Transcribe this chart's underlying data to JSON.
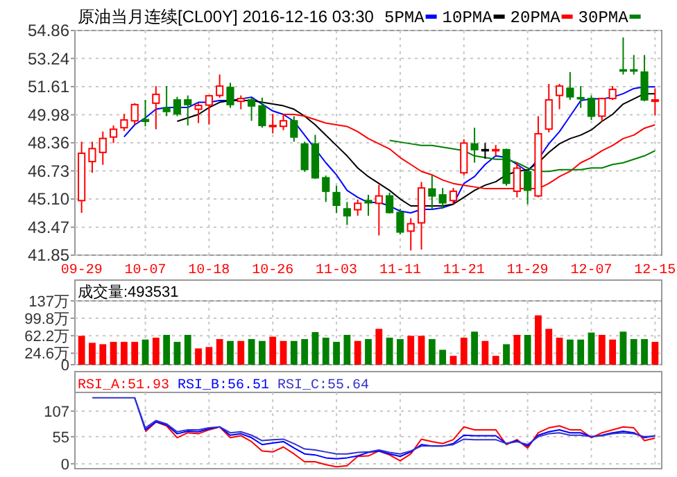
{
  "chart_data": [
    {
      "type": "candlestick",
      "title": "原油当月连续[CL00Y] 2016-12-16 03:30",
      "categories": [
        "09-29",
        null,
        null,
        null,
        null,
        null,
        "10-07",
        null,
        null,
        null,
        null,
        null,
        "10-18",
        null,
        null,
        null,
        null,
        null,
        "10-26",
        null,
        null,
        null,
        null,
        null,
        "11-03",
        null,
        null,
        null,
        null,
        null,
        "11-11",
        null,
        null,
        null,
        null,
        null,
        "11-21",
        null,
        null,
        null,
        null,
        null,
        "11-29",
        null,
        null,
        null,
        null,
        null,
        "12-07",
        null,
        null,
        null,
        null,
        null,
        "12-15"
      ],
      "ohlc": [
        [
          45.01,
          48.42,
          44.3,
          47.75
        ],
        [
          47.27,
          48.42,
          46.62,
          48.02
        ],
        [
          47.8,
          49.01,
          47.08,
          48.61
        ],
        [
          48.69,
          49.36,
          48.34,
          49.14
        ],
        [
          49.23,
          50.03,
          49.04,
          49.68
        ],
        [
          49.63,
          50.65,
          49.41,
          50.57
        ],
        [
          49.7,
          50.84,
          49.31,
          49.6
        ],
        [
          50.65,
          51.64,
          49.14,
          51.16
        ],
        [
          50.38,
          51.64,
          49.9,
          50.17
        ],
        [
          50.84,
          51.02,
          49.9,
          50.03
        ],
        [
          50.84,
          51.1,
          49.36,
          50.57
        ],
        [
          50.3,
          50.65,
          49.5,
          50.52
        ],
        [
          50.54,
          51.1,
          49.41,
          51.08
        ],
        [
          51.1,
          52.31,
          50.97,
          51.64
        ],
        [
          51.56,
          51.83,
          50.38,
          50.57
        ],
        [
          50.76,
          51.1,
          50.3,
          50.92
        ],
        [
          50.84,
          50.97,
          49.63,
          50.49
        ],
        [
          50.49,
          50.97,
          49.23,
          49.36
        ],
        [
          49.31,
          50.03,
          48.9,
          49.36
        ],
        [
          49.31,
          50.03,
          49.09,
          49.63
        ],
        [
          49.63,
          49.9,
          48.42,
          48.69
        ],
        [
          48.29,
          48.42,
          46.68,
          46.81
        ],
        [
          48.29,
          48.82,
          46.27,
          46.33
        ],
        [
          46.33,
          46.46,
          44.93,
          45.55
        ],
        [
          45.47,
          45.87,
          44.3,
          44.74
        ],
        [
          44.53,
          44.93,
          43.6,
          44.13
        ],
        [
          44.48,
          45.07,
          44.13,
          44.85
        ],
        [
          45.01,
          45.34,
          44.13,
          44.88
        ],
        [
          44.85,
          45.92,
          42.99,
          45.28
        ],
        [
          45.28,
          45.47,
          44.26,
          44.32
        ],
        [
          44.32,
          44.53,
          43.05,
          43.19
        ],
        [
          43.24,
          43.99,
          42.12,
          43.67
        ],
        [
          43.72,
          46.09,
          42.17,
          45.74
        ],
        [
          45.68,
          46.46,
          44.48,
          45.28
        ],
        [
          45.34,
          45.74,
          44.53,
          44.88
        ],
        [
          45.01,
          45.74,
          44.8,
          45.55
        ],
        [
          46.62,
          48.56,
          46.46,
          48.34
        ],
        [
          48.29,
          49.23,
          47.21,
          47.96
        ],
        [
          47.96,
          48.34,
          47.43,
          47.96
        ],
        [
          47.9,
          48.23,
          47.61,
          47.96
        ],
        [
          47.96,
          48.02,
          45.87,
          46.01
        ],
        [
          45.55,
          47.21,
          45.2,
          46.89
        ],
        [
          46.68,
          46.81,
          44.8,
          45.61
        ],
        [
          45.28,
          49.9,
          45.2,
          48.88
        ],
        [
          49.15,
          51.77,
          48.96,
          50.84
        ],
        [
          51.1,
          51.77,
          50.3,
          51.64
        ],
        [
          51.51,
          52.45,
          50.84,
          51.02
        ],
        [
          50.97,
          51.64,
          50.38,
          50.92
        ],
        [
          50.92,
          51.1,
          49.68,
          49.9
        ],
        [
          49.9,
          50.97,
          49.57,
          50.92
        ],
        [
          50.92,
          51.64,
          50.84,
          51.45
        ],
        [
          52.58,
          54.46,
          52.31,
          52.53
        ],
        [
          52.58,
          53.44,
          52.31,
          52.53
        ],
        [
          52.45,
          53.44,
          50.76,
          50.84
        ],
        [
          50.76,
          51.5,
          49.95,
          50.84
        ]
      ],
      "colors": [
        "#ff0000",
        "#ff0000",
        "#ff0000",
        "#ff0000",
        "#ff0000",
        "#ff0000",
        "#008000",
        "#ff0000",
        "#008000",
        "#008000",
        "#008000",
        "#ff0000",
        "#ff0000",
        "#ff0000",
        "#008000",
        "#ff0000",
        "#008000",
        "#008000",
        "#ff0000",
        "#ff0000",
        "#008000",
        "#008000",
        "#008000",
        "#008000",
        "#008000",
        "#008000",
        "#ff0000",
        "#008000",
        "#ff0000",
        "#008000",
        "#008000",
        "#ff0000",
        "#ff0000",
        "#008000",
        "#008000",
        "#ff0000",
        "#ff0000",
        "#008000",
        "#000000",
        "#ff0000",
        "#008000",
        "#ff0000",
        "#008000",
        "#ff0000",
        "#ff0000",
        "#ff0000",
        "#008000",
        "#008000",
        "#008000",
        "#ff0000",
        "#ff0000",
        "#008000",
        "#008000",
        "#008000",
        "#ff0000"
      ],
      "series": [
        {
          "name": "5PMA",
          "type": "line",
          "color": "#0000ff",
          "values": [
            null,
            null,
            null,
            null,
            48.7,
            49.4,
            49.8,
            50.3,
            50.4,
            50.4,
            50.4,
            50.7,
            50.7,
            50.8,
            50.8,
            50.9,
            51,
            50.6,
            50.2,
            50,
            49.6,
            48.8,
            48,
            47.2,
            46.5,
            45.6,
            45.2,
            44.9,
            44.9,
            44.7,
            44.4,
            44.3,
            44.5,
            44.5,
            44.6,
            44.8,
            46,
            46.4,
            47.1,
            47.6,
            47.5,
            47.1,
            46.7,
            47.4,
            48.3,
            49,
            49.9,
            50.8,
            50.9,
            50.9,
            51,
            51.2,
            51.5,
            51.6,
            51.6
          ]
        },
        {
          "name": "10PMA",
          "type": "line",
          "color": "#000000",
          "values": [
            null,
            null,
            null,
            null,
            null,
            null,
            null,
            null,
            null,
            49.6,
            49.8,
            50,
            50.4,
            50.7,
            50.8,
            50.8,
            50.8,
            50.7,
            50.6,
            50.5,
            50.3,
            49.9,
            49.4,
            48.8,
            48.2,
            47.6,
            46.9,
            46.4,
            46,
            45.6,
            45.1,
            44.7,
            44.7,
            44.7,
            44.7,
            44.8,
            45.2,
            45.6,
            45.9,
            46.1,
            46.5,
            46.7,
            46.8,
            47.2,
            47.8,
            48.3,
            48.6,
            48.8,
            49.1,
            49.6,
            50,
            50.6,
            50.9,
            51.2,
            51.2
          ]
        },
        {
          "name": "20PMA",
          "type": "line",
          "color": "#ff0000",
          "values": [
            null,
            null,
            null,
            null,
            null,
            null,
            null,
            null,
            null,
            null,
            null,
            null,
            null,
            null,
            null,
            null,
            null,
            null,
            null,
            50,
            50,
            49.9,
            49.7,
            49.5,
            49.4,
            49.3,
            49,
            48.6,
            48.3,
            48,
            47.5,
            47.1,
            46.7,
            46.5,
            46.2,
            46,
            45.9,
            45.8,
            45.7,
            45.7,
            45.7,
            45.7,
            45.7,
            45.7,
            46,
            46.4,
            46.7,
            47.2,
            47.5,
            47.9,
            48.2,
            48.6,
            48.8,
            49.2,
            49.4
          ]
        },
        {
          "name": "30PMA",
          "type": "line",
          "color": "#008000",
          "values": [
            null,
            null,
            null,
            null,
            null,
            null,
            null,
            null,
            null,
            null,
            null,
            null,
            null,
            null,
            null,
            null,
            null,
            null,
            null,
            null,
            null,
            null,
            null,
            null,
            null,
            null,
            null,
            null,
            null,
            48.5,
            48.4,
            48.3,
            48.2,
            48.2,
            48.1,
            48,
            47.9,
            47.6,
            47.5,
            47.4,
            47.4,
            47.2,
            46.9,
            46.7,
            46.7,
            46.8,
            46.8,
            46.8,
            46.9,
            46.9,
            47.1,
            47.2,
            47.4,
            47.6,
            47.9
          ]
        }
      ],
      "ylim": [
        41.85,
        54.86
      ],
      "yticks": [
        41.85,
        43.47,
        {
          "value": 45.1,
          "label": "45.10"
        },
        46.73,
        48.36,
        49.98,
        51.61,
        53.24,
        54.86
      ],
      "grid": true,
      "legend": "top"
    },
    {
      "type": "bar",
      "title": "成交量:493531",
      "categories": [
        null,
        null,
        null,
        null,
        null,
        null,
        null,
        null,
        null,
        null,
        null,
        null,
        null,
        null,
        null,
        null,
        null,
        null,
        null,
        null,
        null,
        null,
        null,
        null,
        null,
        null,
        null,
        null,
        null,
        null,
        null,
        null,
        null,
        null,
        null,
        null,
        null,
        null,
        null,
        null,
        null,
        null,
        null,
        null,
        null,
        null,
        null,
        null,
        null,
        null,
        null,
        null,
        null,
        null,
        null
      ],
      "values": [
        62,
        47,
        44,
        49,
        49,
        49,
        54,
        58,
        64,
        49,
        64,
        35,
        38,
        55,
        51,
        51,
        55,
        51,
        60,
        51,
        51,
        55,
        70,
        58,
        49,
        64,
        51,
        55,
        77,
        58,
        55,
        62,
        62,
        55,
        32,
        19,
        58,
        71,
        51,
        19,
        44,
        64,
        64,
        106,
        77,
        58,
        54,
        54,
        69,
        64,
        54,
        71,
        55,
        55,
        49
      ],
      "colors": [
        "#ff0000",
        "#ff0000",
        "#ff0000",
        "#ff0000",
        "#ff0000",
        "#ff0000",
        "#008000",
        "#ff0000",
        "#008000",
        "#008000",
        "#008000",
        "#ff0000",
        "#ff0000",
        "#ff0000",
        "#008000",
        "#ff0000",
        "#008000",
        "#008000",
        "#ff0000",
        "#ff0000",
        "#008000",
        "#008000",
        "#008000",
        "#008000",
        "#008000",
        "#008000",
        "#ff0000",
        "#008000",
        "#ff0000",
        "#008000",
        "#008000",
        "#ff0000",
        "#ff0000",
        "#008000",
        "#008000",
        "#ff0000",
        "#ff0000",
        "#008000",
        "#ff0000",
        "#ff0000",
        "#008000",
        "#ff0000",
        "#008000",
        "#ff0000",
        "#ff0000",
        "#ff0000",
        "#008000",
        "#008000",
        "#008000",
        "#ff0000",
        "#ff0000",
        "#008000",
        "#008000",
        "#008000",
        "#ff0000"
      ],
      "ylim": [
        0,
        137
      ],
      "yticks": [
        0,
        {
          "value": 24.6,
          "label": "24.6万"
        },
        {
          "value": 62.2,
          "label": "62.2万"
        },
        {
          "value": 99.8,
          "label": "99.8万"
        },
        {
          "value": 137,
          "label": "137万"
        }
      ],
      "grid": true,
      "tick_labels": "y"
    },
    {
      "type": "line",
      "categories": [
        null,
        null,
        null,
        null,
        null,
        null,
        null,
        null,
        null,
        null,
        null,
        null,
        null,
        null,
        null,
        null,
        null,
        null,
        null,
        null,
        null,
        null,
        null,
        null,
        null,
        null,
        null,
        null,
        null,
        null,
        null,
        null,
        null,
        null,
        null,
        null,
        null,
        null,
        null,
        null,
        null,
        null,
        null,
        null,
        null,
        null,
        null,
        null,
        null,
        null,
        null,
        null,
        null,
        null,
        null
      ],
      "series": [
        {
          "name": "RSI_A:51.93",
          "color": "#ff0000",
          "values": [
            null,
            null,
            null,
            null,
            null,
            null,
            65,
            85,
            77,
            53,
            63,
            61,
            69,
            75,
            53,
            57,
            45,
            26,
            24,
            34,
            20,
            4,
            4,
            -2,
            -6,
            -4,
            15,
            16,
            26,
            18,
            6,
            20,
            50,
            45,
            41,
            49,
            75,
            69,
            69,
            69,
            39,
            49,
            32,
            63,
            73,
            77,
            69,
            69,
            53,
            63,
            69,
            75,
            73,
            47,
            52
          ]
        },
        {
          "name": "RSI_B:56.51",
          "color": "#0000ff",
          "values": [
            null,
            null,
            null,
            null,
            null,
            134,
            69,
            85,
            79,
            61,
            66,
            65,
            71,
            75,
            58,
            61,
            53,
            39,
            42,
            45,
            32,
            20,
            18,
            12,
            10,
            12,
            16,
            23,
            26,
            20,
            15,
            24,
            39,
            36,
            36,
            41,
            58,
            57,
            57,
            57,
            41,
            47,
            36,
            58,
            65,
            69,
            63,
            63,
            55,
            58,
            63,
            66,
            63,
            53,
            57
          ]
        },
        {
          "name": "RSI_C:55.64",
          "color": "#3333cc",
          "values": [
            null,
            134,
            134,
            134,
            134,
            134,
            73,
            88,
            81,
            65,
            69,
            69,
            73,
            75,
            63,
            65,
            58,
            47,
            49,
            50,
            41,
            30,
            28,
            24,
            20,
            20,
            23,
            24,
            28,
            23,
            20,
            26,
            36,
            36,
            36,
            39,
            50,
            49,
            49,
            49,
            41,
            45,
            39,
            55,
            61,
            63,
            58,
            58,
            55,
            57,
            61,
            63,
            61,
            55,
            56
          ]
        }
      ],
      "ylim": [
        -10,
        145
      ],
      "yticks": [
        0,
        55,
        107
      ],
      "grid": true,
      "legend": "top",
      "tick_labels": "y"
    }
  ]
}
